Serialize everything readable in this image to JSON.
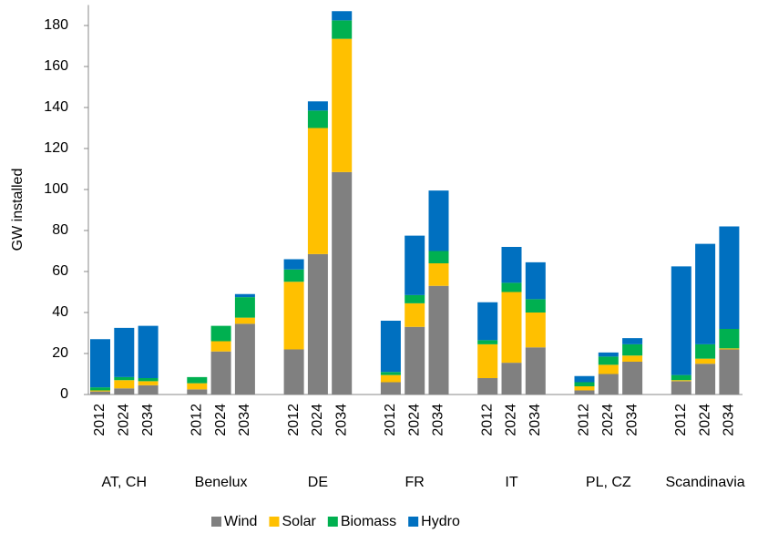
{
  "chart_data": {
    "type": "stacked-bar",
    "y_label": "GW installed",
    "groups": [
      "AT, CH",
      "Benelux",
      "DE",
      "FR",
      "IT",
      "PL, CZ",
      "Scandinavia"
    ],
    "categories": [
      "2012",
      "2024",
      "2034",
      "2012",
      "2024",
      "2034",
      "2012",
      "2024",
      "2034",
      "2012",
      "2024",
      "2034",
      "2012",
      "2024",
      "2034",
      "2012",
      "2024",
      "2034",
      "2012",
      "2024",
      "2034"
    ],
    "series": [
      {
        "name": "Wind",
        "color": "#808080",
        "values": [
          1.5,
          3,
          4.5,
          2.5,
          21,
          34.5,
          22,
          68.5,
          108.5,
          6,
          33,
          53,
          8,
          15.5,
          23,
          2,
          10,
          16,
          6.5,
          15,
          22
        ]
      },
      {
        "name": "Solar",
        "color": "#ffc000",
        "values": [
          0.5,
          4,
          2,
          3,
          5,
          3,
          33,
          61.5,
          65,
          3.5,
          11.5,
          11,
          16.5,
          34.5,
          17,
          2,
          4.5,
          3,
          0.5,
          2.5,
          0.5
        ]
      },
      {
        "name": "Biomass",
        "color": "#00b050",
        "values": [
          1.5,
          1.5,
          1.5,
          3,
          7.5,
          10,
          6,
          8.5,
          9,
          1.5,
          4,
          6,
          2,
          4.5,
          6.5,
          2,
          4,
          5.5,
          2.5,
          7,
          9.5
        ]
      },
      {
        "name": "Hydro",
        "color": "#0070c0",
        "values": [
          23.5,
          24,
          25.5,
          0,
          0,
          1.5,
          5,
          4.5,
          4.5,
          25,
          29,
          29.5,
          18.5,
          17.5,
          18,
          3,
          2,
          3,
          53,
          49,
          50
        ]
      }
    ],
    "ylim": [
      0,
      190
    ],
    "yticks": [
      0,
      20,
      40,
      60,
      80,
      100,
      120,
      140,
      160,
      180
    ]
  }
}
